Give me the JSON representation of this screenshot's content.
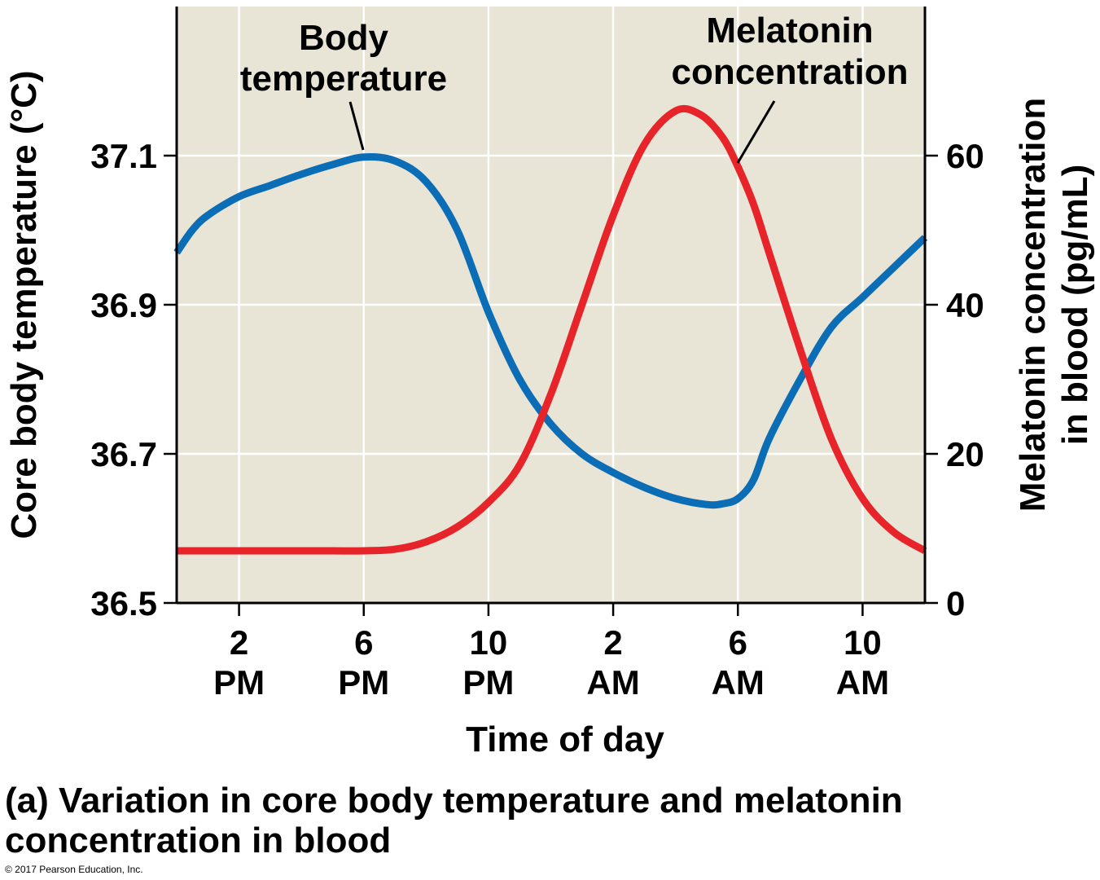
{
  "chart_data": {
    "type": "line",
    "caption": {
      "line1": "(a) Variation in core body temperature and melatonin",
      "line2": "concentration in blood"
    },
    "copyright": "© 2017 Pearson Education, Inc.",
    "xlabel": "Time of day",
    "x_unit": "hours after noon",
    "xlim": [
      0,
      24
    ],
    "x_ticks": [
      {
        "value": 2,
        "hour": "2",
        "period": "PM"
      },
      {
        "value": 6,
        "hour": "6",
        "period": "PM"
      },
      {
        "value": 10,
        "hour": "10",
        "period": "PM"
      },
      {
        "value": 14,
        "hour": "2",
        "period": "AM"
      },
      {
        "value": 18,
        "hour": "6",
        "period": "AM"
      },
      {
        "value": 22,
        "hour": "10",
        "period": "AM"
      }
    ],
    "y_left": {
      "label": "Core body temperature (°C)",
      "lim": [
        36.5,
        37.3
      ],
      "ticks": [
        "36.5",
        "36.7",
        "36.9",
        "37.1"
      ]
    },
    "y_right": {
      "label_line1": "Melatonin concentration",
      "label_line2": "in blood (pg/mL)",
      "lim": [
        0,
        80
      ],
      "ticks": [
        "0",
        "20",
        "40",
        "60"
      ]
    },
    "grid": true,
    "background_color": "#e8e5d6",
    "series": [
      {
        "name": "Body temperature",
        "label_line1": "Body",
        "label_line2": "temperature",
        "axis": "left",
        "color": "#0a6db5",
        "x": [
          0,
          0.5,
          1,
          2,
          3,
          4,
          5,
          6,
          7,
          8,
          9,
          10,
          11,
          12,
          13,
          14,
          15,
          16,
          17,
          17.5,
          18,
          18.5,
          19,
          20,
          21,
          22,
          23,
          24
        ],
        "y": [
          36.97,
          37.0,
          37.02,
          37.045,
          37.06,
          37.075,
          37.088,
          37.098,
          37.093,
          37.065,
          37.0,
          36.89,
          36.8,
          36.74,
          36.7,
          36.675,
          36.655,
          36.64,
          36.632,
          36.633,
          36.64,
          36.665,
          36.72,
          36.8,
          36.87,
          36.91,
          36.95,
          36.99
        ]
      },
      {
        "name": "Melatonin concentration",
        "label_line1": "Melatonin",
        "label_line2": "concentration",
        "axis": "right",
        "color": "#e8242b",
        "x": [
          0,
          1,
          2,
          3,
          4,
          5,
          6,
          7,
          8,
          9,
          10,
          11,
          12,
          13,
          14,
          15,
          16,
          16.8,
          17.5,
          18,
          18.5,
          19,
          20,
          21,
          22,
          23,
          24
        ],
        "y": [
          7,
          7,
          7,
          7,
          7,
          7,
          7,
          7.2,
          8.2,
          10.2,
          13.5,
          18.5,
          28,
          40,
          52,
          61.5,
          66,
          65.5,
          62.5,
          58.5,
          53.5,
          47,
          34,
          22,
          14,
          9.5,
          7
        ]
      }
    ]
  }
}
